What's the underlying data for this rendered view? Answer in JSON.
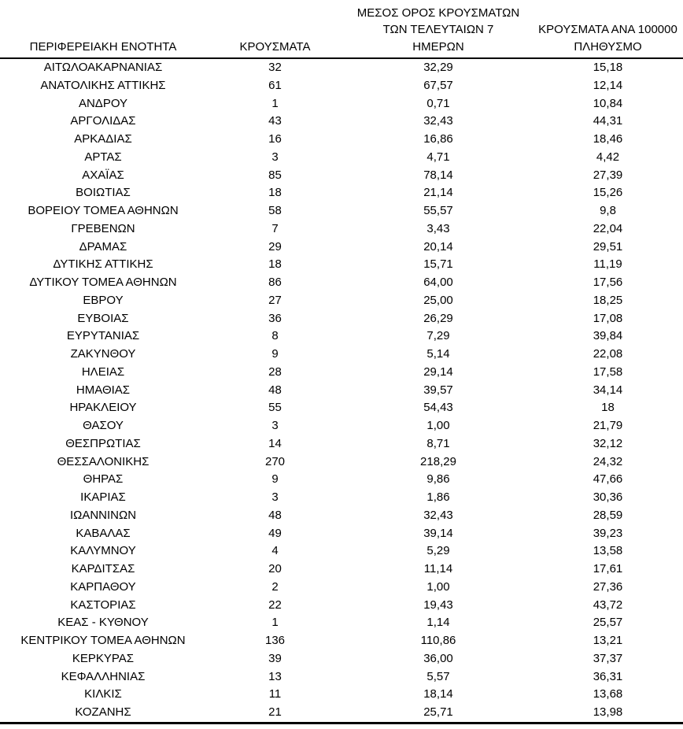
{
  "colors": {
    "text": "#000000",
    "background": "#ffffff",
    "rule": "#000000"
  },
  "table": {
    "header": {
      "col1": "ΠΕΡΙΦΕΡΕΙΑΚΗ ΕΝΟΤΗΤΑ",
      "col2": "ΚΡΟΥΣΜΑΤΑ",
      "col3_lines": [
        "ΜΕΣΟΣ ΟΡΟΣ ΚΡΟΥΣΜΑΤΩΝ",
        "ΤΩΝ ΤΕΛΕΥΤΑΙΩΝ 7",
        "ΗΜΕΡΩΝ"
      ],
      "col4_lines": [
        "ΚΡΟΥΣΜΑΤΑ ΑΝΑ 100000",
        "ΠΛΗΘΥΣΜΟ"
      ]
    },
    "rows": [
      [
        "ΑΙΤΩΛΟΑΚΑΡΝΑΝΙΑΣ",
        "32",
        "32,29",
        "15,18"
      ],
      [
        "ΑΝΑΤΟΛΙΚΗΣ ΑΤΤΙΚΗΣ",
        "61",
        "67,57",
        "12,14"
      ],
      [
        "ΑΝΔΡΟΥ",
        "1",
        "0,71",
        "10,84"
      ],
      [
        "ΑΡΓΟΛΙΔΑΣ",
        "43",
        "32,43",
        "44,31"
      ],
      [
        "ΑΡΚΑΔΙΑΣ",
        "16",
        "16,86",
        "18,46"
      ],
      [
        "ΑΡΤΑΣ",
        "3",
        "4,71",
        "4,42"
      ],
      [
        "ΑΧΑΪΑΣ",
        "85",
        "78,14",
        "27,39"
      ],
      [
        "ΒΟΙΩΤΙΑΣ",
        "18",
        "21,14",
        "15,26"
      ],
      [
        "ΒΟΡΕΙΟΥ ΤΟΜΕΑ ΑΘΗΝΩΝ",
        "58",
        "55,57",
        "9,8"
      ],
      [
        "ΓΡΕΒΕΝΩΝ",
        "7",
        "3,43",
        "22,04"
      ],
      [
        "ΔΡΑΜΑΣ",
        "29",
        "20,14",
        "29,51"
      ],
      [
        "ΔΥΤΙΚΗΣ ΑΤΤΙΚΗΣ",
        "18",
        "15,71",
        "11,19"
      ],
      [
        "ΔΥΤΙΚΟΥ ΤΟΜΕΑ ΑΘΗΝΩΝ",
        "86",
        "64,00",
        "17,56"
      ],
      [
        "ΕΒΡΟΥ",
        "27",
        "25,00",
        "18,25"
      ],
      [
        "ΕΥΒΟΙΑΣ",
        "36",
        "26,29",
        "17,08"
      ],
      [
        "ΕΥΡΥΤΑΝΙΑΣ",
        "8",
        "7,29",
        "39,84"
      ],
      [
        "ΖΑΚΥΝΘΟΥ",
        "9",
        "5,14",
        "22,08"
      ],
      [
        "ΗΛΕΙΑΣ",
        "28",
        "29,14",
        "17,58"
      ],
      [
        "ΗΜΑΘΙΑΣ",
        "48",
        "39,57",
        "34,14"
      ],
      [
        "ΗΡΑΚΛΕΙΟΥ",
        "55",
        "54,43",
        "18"
      ],
      [
        "ΘΑΣΟΥ",
        "3",
        "1,00",
        "21,79"
      ],
      [
        "ΘΕΣΠΡΩΤΙΑΣ",
        "14",
        "8,71",
        "32,12"
      ],
      [
        "ΘΕΣΣΑΛΟΝΙΚΗΣ",
        "270",
        "218,29",
        "24,32"
      ],
      [
        "ΘΗΡΑΣ",
        "9",
        "9,86",
        "47,66"
      ],
      [
        "ΙΚΑΡΙΑΣ",
        "3",
        "1,86",
        "30,36"
      ],
      [
        "ΙΩΑΝΝΙΝΩΝ",
        "48",
        "32,43",
        "28,59"
      ],
      [
        "ΚΑΒΑΛΑΣ",
        "49",
        "39,14",
        "39,23"
      ],
      [
        "ΚΑΛΥΜΝΟΥ",
        "4",
        "5,29",
        "13,58"
      ],
      [
        "ΚΑΡΔΙΤΣΑΣ",
        "20",
        "11,14",
        "17,61"
      ],
      [
        "ΚΑΡΠΑΘΟΥ",
        "2",
        "1,00",
        "27,36"
      ],
      [
        "ΚΑΣΤΟΡΙΑΣ",
        "22",
        "19,43",
        "43,72"
      ],
      [
        "ΚΕΑΣ - ΚΥΘΝΟΥ",
        "1",
        "1,14",
        "25,57"
      ],
      [
        "ΚΕΝΤΡΙΚΟΥ ΤΟΜΕΑ ΑΘΗΝΩΝ",
        "136",
        "110,86",
        "13,21"
      ],
      [
        "ΚΕΡΚΥΡΑΣ",
        "39",
        "36,00",
        "37,37"
      ],
      [
        "ΚΕΦΑΛΛΗΝΙΑΣ",
        "13",
        "5,57",
        "36,31"
      ],
      [
        "ΚΙΛΚΙΣ",
        "11",
        "18,14",
        "13,68"
      ],
      [
        "ΚΟΖΑΝΗΣ",
        "21",
        "25,71",
        "13,98"
      ]
    ]
  }
}
